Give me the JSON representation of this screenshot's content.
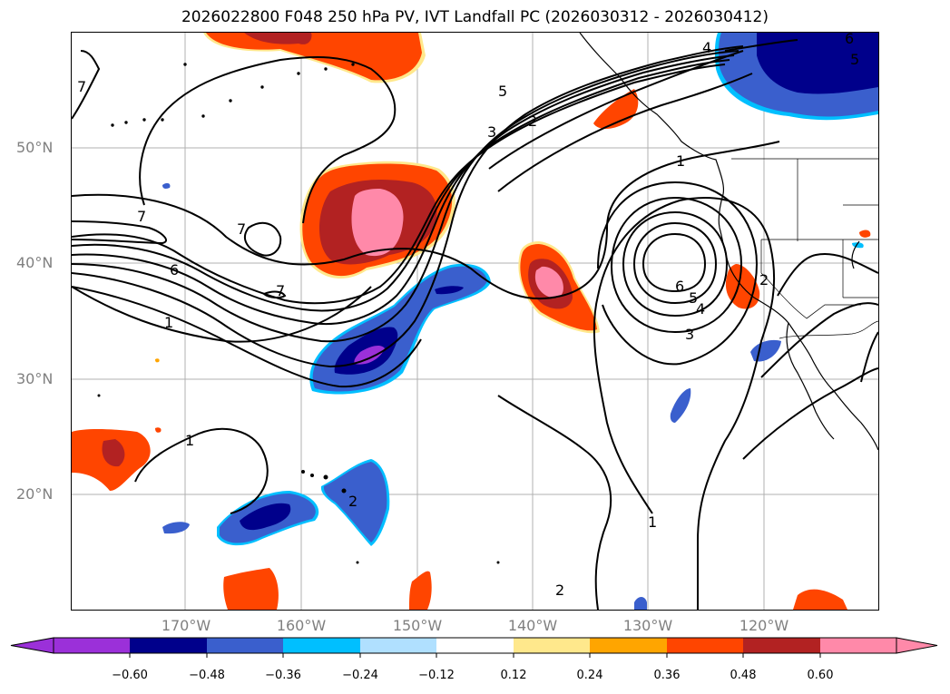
{
  "title": "2026022800 F048 250 hPa PV, IVT Landfall PC (2026030312 - 2026030412)",
  "map": {
    "lat_labels": [
      "50°N",
      "40°N",
      "30°N",
      "20°N"
    ],
    "lon_labels": [
      "170°W",
      "160°W",
      "150°W",
      "140°W",
      "130°W",
      "120°W"
    ],
    "contour_labels": [
      "7",
      "7",
      "7",
      "7",
      "6",
      "1",
      "5",
      "3",
      "2",
      "4",
      "6",
      "5",
      "1",
      "2",
      "6",
      "5",
      "4",
      "3",
      "2",
      "1",
      "1",
      "2"
    ]
  },
  "colorbar": {
    "ticks": [
      "−0.60",
      "−0.48",
      "−0.36",
      "−0.24",
      "−0.12",
      "0.12",
      "0.24",
      "0.36",
      "0.48",
      "0.60"
    ],
    "colors": [
      "#9b30d9",
      "#00008b",
      "#3a5fcd",
      "#00bfff",
      "#b0e0ff",
      "#ffffff",
      "#ffe88c",
      "#ffa500",
      "#ff4500",
      "#b22222",
      "#ff89a9",
      "#ff89a9"
    ]
  }
}
